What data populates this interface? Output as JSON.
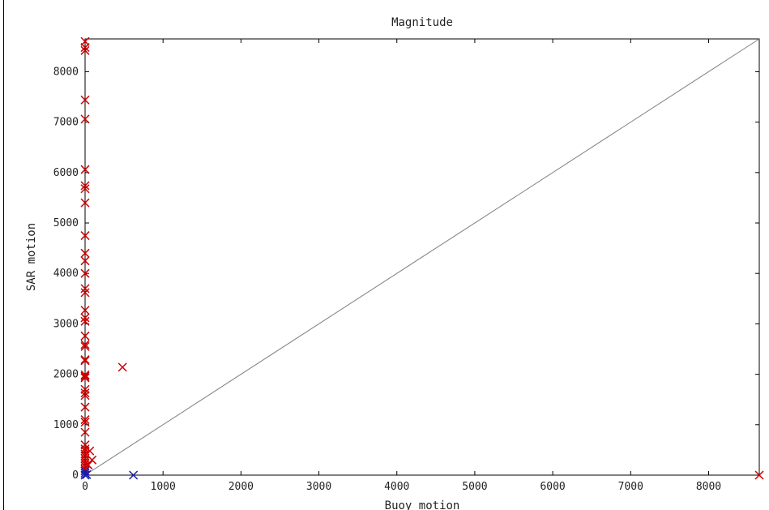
{
  "chart_data": {
    "type": "scatter",
    "title": "Magnitude",
    "xlabel": "Buoy motion",
    "ylabel": "SAR motion",
    "xlim": [
      0,
      8650
    ],
    "ylim": [
      0,
      8650
    ],
    "xticks": [
      0,
      1000,
      2000,
      3000,
      4000,
      5000,
      6000,
      7000,
      8000
    ],
    "yticks": [
      0,
      1000,
      2000,
      3000,
      4000,
      5000,
      6000,
      7000,
      8000
    ],
    "grid": false,
    "legend": "none",
    "reference_line": {
      "from": [
        0,
        0
      ],
      "to": [
        8650,
        8650
      ],
      "color": "#808080"
    },
    "series": [
      {
        "color": "#cc0000",
        "marker": "x",
        "points": [
          [
            0,
            8600
          ],
          [
            0,
            8480
          ],
          [
            0,
            8420
          ],
          [
            0,
            7440
          ],
          [
            0,
            7060
          ],
          [
            0,
            6060
          ],
          [
            0,
            5740
          ],
          [
            0,
            5680
          ],
          [
            0,
            5400
          ],
          [
            0,
            4750
          ],
          [
            0,
            4400
          ],
          [
            0,
            4250
          ],
          [
            0,
            4000
          ],
          [
            0,
            3700
          ],
          [
            0,
            3620
          ],
          [
            0,
            3270
          ],
          [
            0,
            3120
          ],
          [
            0,
            3050
          ],
          [
            0,
            2760
          ],
          [
            0,
            2590
          ],
          [
            0,
            2550
          ],
          [
            0,
            2290
          ],
          [
            0,
            2270
          ],
          [
            0,
            1990
          ],
          [
            0,
            1960
          ],
          [
            0,
            1930
          ],
          [
            0,
            1700
          ],
          [
            0,
            1630
          ],
          [
            0,
            1580
          ],
          [
            0,
            1350
          ],
          [
            0,
            1100
          ],
          [
            0,
            1050
          ],
          [
            0,
            850
          ],
          [
            0,
            600
          ],
          [
            0,
            520
          ],
          [
            0,
            480
          ],
          [
            0,
            420
          ],
          [
            0,
            380
          ],
          [
            0,
            330
          ],
          [
            0,
            280
          ],
          [
            0,
            230
          ],
          [
            0,
            180
          ],
          [
            0,
            120
          ],
          [
            60,
            480
          ],
          [
            90,
            300
          ],
          [
            40,
            200
          ],
          [
            480,
            2140
          ],
          [
            8650,
            0
          ]
        ]
      },
      {
        "color": "#1a1aaa",
        "marker": "x",
        "points": [
          [
            0,
            0
          ],
          [
            0,
            40
          ],
          [
            0,
            80
          ],
          [
            20,
            10
          ],
          [
            620,
            0
          ]
        ]
      }
    ]
  }
}
